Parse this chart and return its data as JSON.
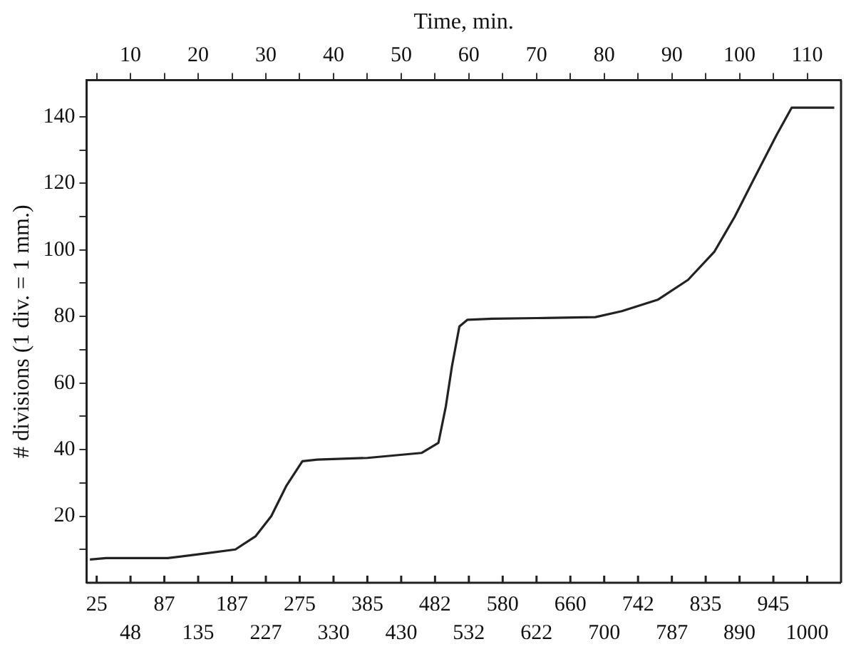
{
  "chart_data": {
    "type": "line",
    "xlabel": "Time, min.",
    "ylabel": "# divisions (1 div. = 1 mm.)",
    "x": [
      4,
      6.4,
      15.5,
      21,
      25.5,
      28.5,
      30.8,
      33,
      35.4,
      37.6,
      45,
      53,
      55.5,
      56.6,
      57.5,
      58.6,
      59.8,
      63.5,
      70,
      78.7,
      82.6,
      87.9,
      92.4,
      96.3,
      99.3,
      102.3,
      105.5,
      107.7,
      114
    ],
    "series": [
      {
        "color": "#222222",
        "values": [
          7,
          7.4,
          7.4,
          8.8,
          10,
          14,
          20,
          29,
          36.5,
          37,
          37.5,
          39,
          42,
          53,
          65,
          77,
          79,
          79.3,
          79.5,
          79.8,
          81.6,
          85,
          91,
          99.5,
          110,
          122,
          134.6,
          142.7,
          142.7
        ]
      }
    ],
    "xlim": [
      3.5,
      115
    ],
    "xticks": [
      {
        "value": 5,
        "label": null
      },
      10,
      {
        "value": 15,
        "label": null
      },
      20,
      {
        "value": 25,
        "label": null
      },
      30,
      {
        "value": 35,
        "label": null
      },
      40,
      {
        "value": 45,
        "label": null
      },
      50,
      {
        "value": 55,
        "label": null
      },
      60,
      {
        "value": 65,
        "label": null
      },
      70,
      {
        "value": 75,
        "label": null
      },
      80,
      {
        "value": 85,
        "label": null
      },
      90,
      {
        "value": 95,
        "label": null
      },
      100,
      {
        "value": 105,
        "label": null
      },
      110
    ],
    "ylim": [
      0,
      151
    ],
    "yticks": [
      {
        "value": 10,
        "label": null
      },
      20,
      {
        "value": 30,
        "label": null
      },
      40,
      {
        "value": 50,
        "label": null
      },
      60,
      {
        "value": 70,
        "label": null
      },
      80,
      {
        "value": 90,
        "label": null
      },
      100,
      {
        "value": 110,
        "label": null
      },
      120,
      {
        "value": 130,
        "label": null
      },
      140
    ],
    "annotations": [
      "25",
      "48",
      "87",
      "135",
      "187",
      "227",
      "275",
      "330",
      "385",
      "430",
      "482",
      "532",
      "580",
      "622",
      "660",
      "700",
      "742",
      "787",
      "835",
      "890",
      "945",
      "1000"
    ],
    "grid": false,
    "legend": false,
    "marker": "none",
    "line_style": "solid"
  }
}
